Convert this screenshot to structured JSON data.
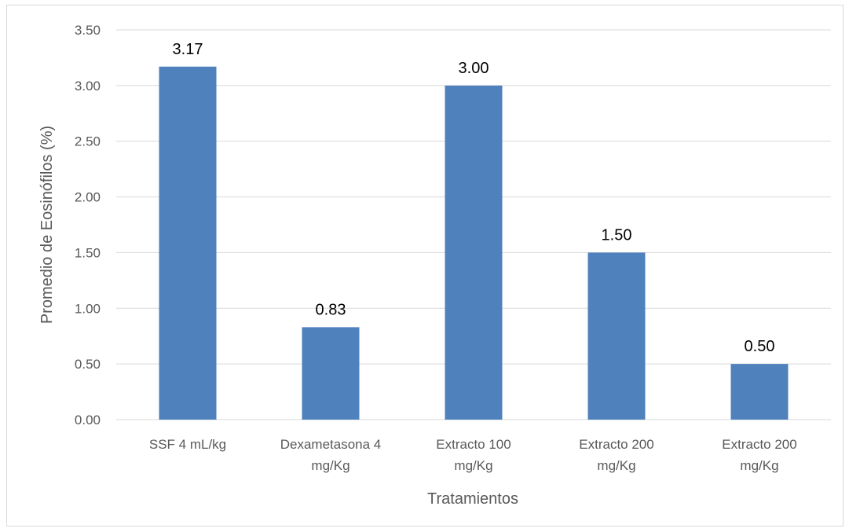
{
  "chart_data": {
    "type": "bar",
    "categories": [
      [
        "SSF 4 mL/kg"
      ],
      [
        "Dexametasona 4",
        "mg/Kg"
      ],
      [
        "Extracto 100",
        "mg/Kg"
      ],
      [
        "Extracto 200",
        "mg/Kg"
      ],
      [
        "Extracto 200",
        "mg/Kg"
      ]
    ],
    "values": [
      3.17,
      0.83,
      3.0,
      1.5,
      0.5
    ],
    "data_labels": [
      "3.17",
      "0.83",
      "3.00",
      "1.50",
      "0.50"
    ],
    "xlabel": "Tratamientos",
    "ylabel": "Promedio de Eosinófilos (%)",
    "ylim": [
      0,
      3.5
    ],
    "yticks": [
      0,
      0.5,
      1,
      1.5,
      2,
      2.5,
      3,
      3.5
    ],
    "ytick_labels": [
      "0.00",
      "0.50",
      "1.00",
      "1.50",
      "2.00",
      "2.50",
      "3.00",
      "3.50"
    ],
    "grid": true,
    "legend": "none",
    "bar_color": "#4f81bd",
    "grid_color": "#d9d9d9"
  }
}
